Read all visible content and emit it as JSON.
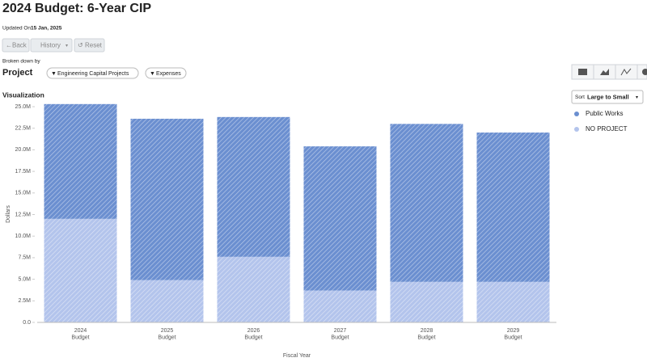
{
  "header": {
    "title": "2024 Budget: 6-Year CIP",
    "updated_label": "Updated On",
    "updated_date": "15 Jan, 2025"
  },
  "toolbar": {
    "back": "Back",
    "history": "History",
    "reset": "Reset"
  },
  "breakdown": {
    "label": "Broken down by",
    "value": "Project",
    "filters": [
      "Engineering Capital Projects",
      "Expenses"
    ]
  },
  "section_title": "Visualization",
  "sort": {
    "label": "Sort",
    "value": "Large to Small"
  },
  "chart_data": {
    "type": "bar",
    "stacked": true,
    "x_label": "Fiscal Year",
    "y_label": "Dollars",
    "categories": [
      [
        "2024",
        "Budget"
      ],
      [
        "2025",
        "Budget"
      ],
      [
        "2026",
        "Budget"
      ],
      [
        "2027",
        "Budget"
      ],
      [
        "2028",
        "Budget"
      ],
      [
        "2029",
        "Budget"
      ]
    ],
    "series": [
      {
        "name": "Public Works",
        "color": "#6b8fd0",
        "values": [
          13300000,
          18700000,
          16200000,
          16700000,
          18300000,
          17300000
        ]
      },
      {
        "name": "NO PROJECT",
        "color": "#b3c4ec",
        "values": [
          12000000,
          4900000,
          7600000,
          3700000,
          4700000,
          4700000
        ]
      }
    ],
    "ylim": [
      0,
      25000000
    ],
    "yticks": [
      {
        "value": 0,
        "label": "0.0"
      },
      {
        "value": 2500000,
        "label": "2.5M"
      },
      {
        "value": 5000000,
        "label": "5.0M"
      },
      {
        "value": 7500000,
        "label": "7.5M"
      },
      {
        "value": 10000000,
        "label": "10.0M"
      },
      {
        "value": 12500000,
        "label": "12.5M"
      },
      {
        "value": 15000000,
        "label": "15.0M"
      },
      {
        "value": 17500000,
        "label": "17.5M"
      },
      {
        "value": 20000000,
        "label": "20.0M"
      },
      {
        "value": 22500000,
        "label": "22.5M"
      },
      {
        "value": 25000000,
        "label": "25.0M"
      }
    ],
    "grid": false
  }
}
